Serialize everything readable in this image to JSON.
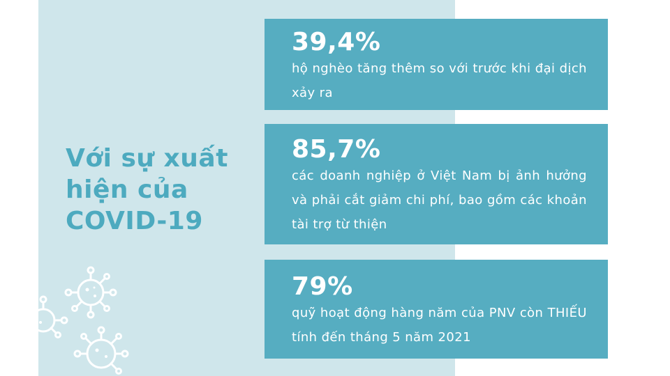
{
  "headline": {
    "line1": "Với sự xuất",
    "line2": "hiện của",
    "line3": "COVID-19"
  },
  "stats": [
    {
      "value": "39,4%",
      "description": "hộ nghèo tăng thêm so với trước khi đại dịch xảy ra"
    },
    {
      "value": "85,7%",
      "description": "các doanh nghiệp ở Việt Nam bị ảnh hưởng và phải cắt giảm chi phí, bao gồm các khoản tài trợ từ thiện"
    },
    {
      "value": "79%",
      "description": "quỹ hoạt động hàng năm của PNV còn THIẾU tính đến tháng 5 năm 2021"
    }
  ],
  "colors": {
    "panel_background": "#cfe6eb",
    "accent": "#4daabf",
    "card_background": "#56adc1",
    "card_text": "#ffffff"
  },
  "decoration": {
    "icon": "virus-icon"
  }
}
